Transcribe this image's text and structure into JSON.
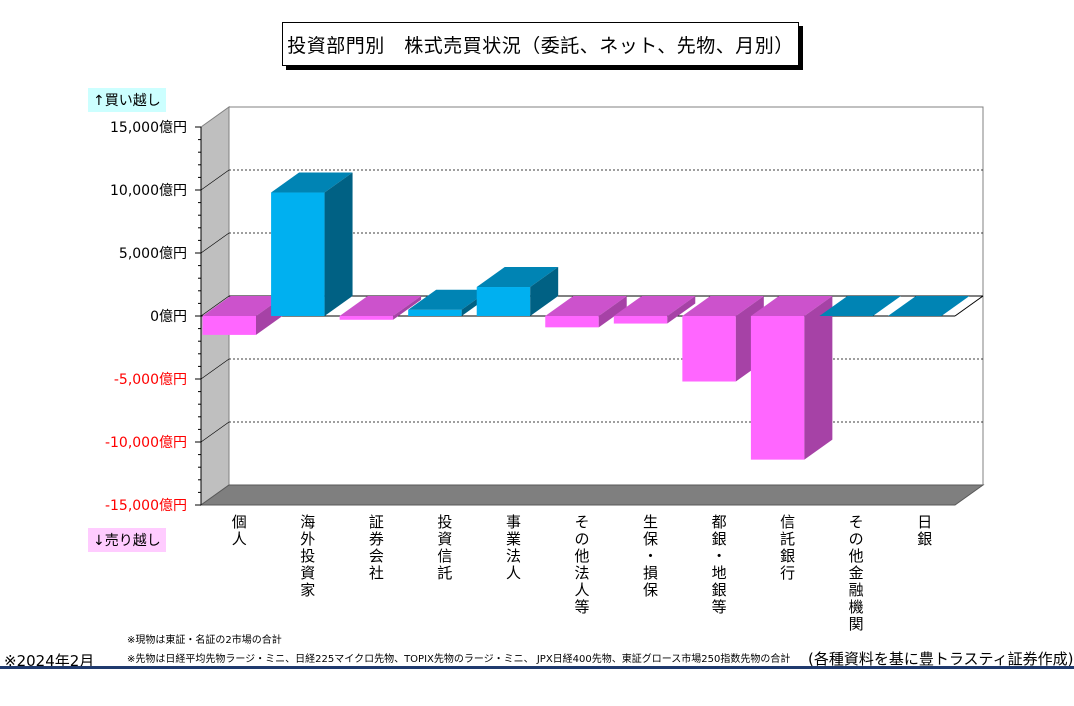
{
  "chart_data": {
    "type": "bar",
    "title": "投資部門別　株式売買状況（委託、ネット、先物、月別）",
    "ylabel_top": "↑買い越し",
    "ylabel_bottom": "↓売り越し",
    "ylim": [
      -15000,
      15000
    ],
    "yticks": [
      {
        "value": 15000,
        "label": "15,000億円"
      },
      {
        "value": 10000,
        "label": "10,000億円"
      },
      {
        "value": 5000,
        "label": "5,000億円"
      },
      {
        "value": 0,
        "label": "0億円"
      },
      {
        "value": -5000,
        "label": "-5,000億円"
      },
      {
        "value": -10000,
        "label": "-10,000億円"
      },
      {
        "value": -15000,
        "label": "-15,000億円"
      }
    ],
    "categories": [
      "個人",
      "海外投資家",
      "証券会社",
      "投資信託",
      "事業法人",
      "その他法人等",
      "生保・損保",
      "都銀・地銀等",
      "信託銀行",
      "その他金融機関",
      "日銀"
    ],
    "values": [
      -1500,
      9800,
      -300,
      500,
      2300,
      -900,
      -600,
      -5200,
      -11400,
      0,
      0
    ],
    "colors": {
      "positive": "#00b0f0",
      "negative": "#ff66ff",
      "negative_label": "#ff0000"
    },
    "grid": true
  },
  "notes": {
    "note1": "※現物は東証・名証の2市場の合計",
    "note2": "※先物は日経平均先物ラージ・ミニ、日経225マイクロ先物、TOPIX先物のラージ・ミニ、 JPX日経400先物、東証グロース市場250指数先物の合計"
  },
  "footer": {
    "date": "※2024年2月",
    "source": "(各種資料を基に豊トラスティ証券作成)"
  }
}
